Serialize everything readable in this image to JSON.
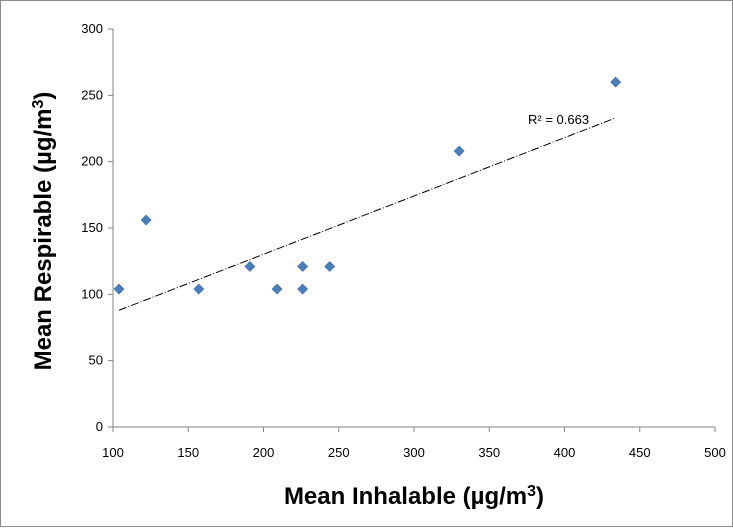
{
  "chart_data": {
    "type": "scatter",
    "title": "",
    "xlabel": "Mean Inhalable (µg/m",
    "xlabel_sup": "3",
    "xlabel_end": ")",
    "ylabel": "Mean Respirable (µg/m",
    "ylabel_sup": "3",
    "ylabel_end": ")",
    "xlim": [
      100,
      500
    ],
    "ylim": [
      0,
      300
    ],
    "xticks": [
      100,
      150,
      200,
      250,
      300,
      350,
      400,
      450,
      500
    ],
    "yticks": [
      0,
      50,
      100,
      150,
      200,
      250,
      300
    ],
    "grid": false,
    "legend": "none",
    "marker": "diamond",
    "marker_color": "#4a7ebb",
    "points": [
      {
        "x": 104,
        "y": 104
      },
      {
        "x": 122,
        "y": 156
      },
      {
        "x": 157,
        "y": 104
      },
      {
        "x": 191,
        "y": 121
      },
      {
        "x": 209,
        "y": 104
      },
      {
        "x": 226,
        "y": 121
      },
      {
        "x": 226,
        "y": 104
      },
      {
        "x": 244,
        "y": 121
      },
      {
        "x": 330,
        "y": 208
      },
      {
        "x": 434,
        "y": 260
      }
    ],
    "trendline": {
      "type": "linear",
      "x_start": 104,
      "y_start": 88,
      "x_end": 434,
      "y_end": 233,
      "color": "#000000",
      "style": "dashed"
    },
    "annotation": "R² = 0.663"
  }
}
